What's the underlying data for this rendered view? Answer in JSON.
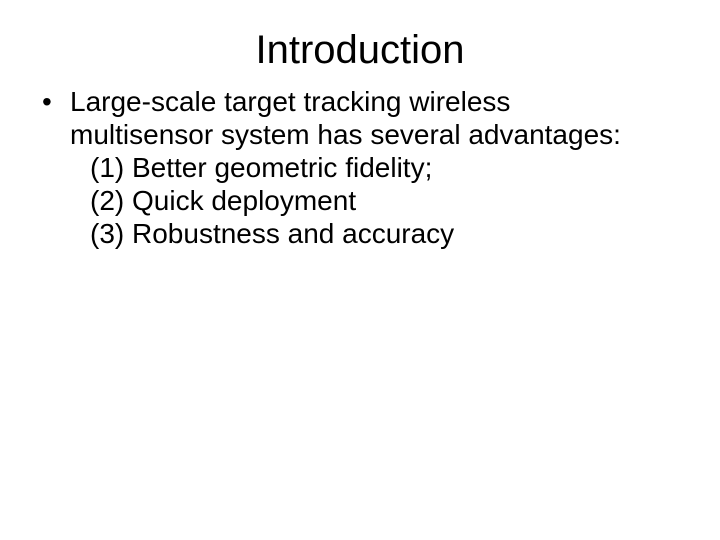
{
  "title": "Introduction",
  "bullet": {
    "lead": "Large-scale target tracking wireless multisensor system has several advantages:",
    "items": [
      "(1) Better geometric fidelity;",
      "(2) Quick deployment",
      "(3) Robustness and accuracy"
    ]
  },
  "style": {
    "background_color": "#ffffff",
    "text_color": "#000000",
    "title_fontsize_pt": 40,
    "body_fontsize_pt": 28,
    "font_family": "Arial"
  }
}
